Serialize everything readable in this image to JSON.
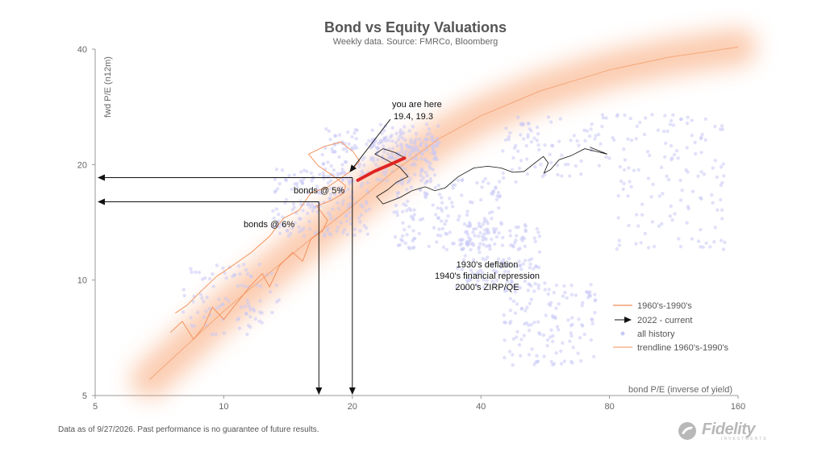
{
  "chart_data": {
    "type": "scatter",
    "title": "Bond vs Equity Valuations",
    "subtitle": "Weekly data.  Source: FMRCo, Bloomberg",
    "xlabel": "bond P/E (inverse of yield)",
    "ylabel": "fwd P/E (n12m)",
    "x_scale": "log",
    "y_scale": "log",
    "xlim": [
      5,
      160
    ],
    "ylim": [
      5,
      40
    ],
    "x_ticks": [
      5,
      10,
      20,
      40,
      80,
      160
    ],
    "y_ticks": [
      5,
      10,
      20,
      40
    ],
    "grid": false,
    "legend_position": "bottom-right",
    "legend": [
      {
        "label": "1960's-1990's",
        "color": "#f28c55",
        "kind": "line"
      },
      {
        "label": "2022 - current",
        "color": "#111111",
        "kind": "arrow"
      },
      {
        "label": "all history",
        "color": "#c9c9f5",
        "kind": "dot"
      },
      {
        "label": "trendline 1960's-1990's",
        "color": "#f4a87a",
        "kind": "line"
      }
    ],
    "series": [
      {
        "name": "1960's-1990's",
        "color": "#f28c55",
        "points": [
          [
            7.5,
            7.3
          ],
          [
            8.0,
            7.8
          ],
          [
            8.5,
            7.0
          ],
          [
            9.0,
            7.6
          ],
          [
            9.4,
            8.5
          ],
          [
            10.0,
            7.9
          ],
          [
            10.8,
            8.8
          ],
          [
            11.5,
            9.6
          ],
          [
            12.3,
            10.4
          ],
          [
            12.8,
            9.6
          ],
          [
            13.5,
            10.9
          ],
          [
            14.5,
            11.8
          ],
          [
            15.3,
            11.2
          ],
          [
            16.0,
            12.8
          ],
          [
            17.0,
            13.4
          ],
          [
            17.5,
            14.3
          ],
          [
            16.5,
            15.6
          ],
          [
            17.8,
            16.1
          ],
          [
            19.0,
            16.8
          ],
          [
            19.3,
            17.6
          ],
          [
            18.4,
            18.4
          ],
          [
            16.6,
            19.9
          ],
          [
            15.8,
            21.3
          ],
          [
            17.2,
            22.3
          ],
          [
            18.8,
            22.9
          ],
          [
            20.1,
            21.6
          ],
          [
            20.8,
            20.4
          ],
          [
            19.8,
            19.2
          ],
          [
            18.6,
            18.3
          ],
          [
            17.4,
            17.4
          ],
          [
            16.0,
            16.9
          ],
          [
            15.0,
            15.2
          ],
          [
            13.8,
            14.5
          ],
          [
            12.8,
            13.0
          ],
          [
            11.6,
            11.8
          ],
          [
            10.6,
            11.0
          ],
          [
            9.6,
            10.2
          ],
          [
            8.8,
            9.3
          ],
          [
            8.2,
            8.6
          ],
          [
            7.7,
            8.2
          ]
        ]
      },
      {
        "name": "2022 - current",
        "color": "#111111",
        "points": [
          [
            24.6,
            20.0
          ],
          [
            26.4,
            20.9
          ],
          [
            25.2,
            21.5
          ],
          [
            23.6,
            22.0
          ],
          [
            22.6,
            21.3
          ],
          [
            24.0,
            20.6
          ],
          [
            25.8,
            19.7
          ],
          [
            27.0,
            18.6
          ],
          [
            25.4,
            18.0
          ],
          [
            24.2,
            17.2
          ],
          [
            22.8,
            16.5
          ],
          [
            23.6,
            15.8
          ],
          [
            25.8,
            16.4
          ],
          [
            27.6,
            17.1
          ],
          [
            29.6,
            17.5
          ],
          [
            31.2,
            17.1
          ],
          [
            33.0,
            17.4
          ],
          [
            35.4,
            18.6
          ],
          [
            38.5,
            19.6
          ],
          [
            41.5,
            19.8
          ],
          [
            44.6,
            19.6
          ],
          [
            47.5,
            19.1
          ],
          [
            50.5,
            19.2
          ],
          [
            53.5,
            20.2
          ],
          [
            56.0,
            21.0
          ],
          [
            57.5,
            20.2
          ],
          [
            56.2,
            19.0
          ],
          [
            58.2,
            19.4
          ],
          [
            61.0,
            20.6
          ],
          [
            65.0,
            21.1
          ],
          [
            70.0,
            22.0
          ],
          [
            75.0,
            21.6
          ],
          [
            79.0,
            21.3
          ],
          [
            72.0,
            22.2
          ]
        ]
      },
      {
        "name": "2022 - current (recent, highlighted)",
        "color": "#e02424",
        "points": [
          [
            20.6,
            18.2
          ],
          [
            22.5,
            19.2
          ],
          [
            24.5,
            20.0
          ],
          [
            26.5,
            20.8
          ]
        ]
      },
      {
        "name": "trendline 1960's-1990's",
        "color": "#f4a87a",
        "points": [
          [
            6.7,
            5.5
          ],
          [
            8.0,
            6.6
          ],
          [
            10.0,
            8.3
          ],
          [
            13.0,
            10.6
          ],
          [
            16.0,
            12.8
          ],
          [
            20.0,
            15.6
          ],
          [
            25.0,
            19.2
          ],
          [
            32.0,
            23.4
          ],
          [
            40.0,
            26.8
          ],
          [
            55.0,
            31.1
          ],
          [
            80.0,
            35.3
          ],
          [
            110.0,
            38.1
          ],
          [
            160.0,
            40.5
          ]
        ]
      },
      {
        "name": "all history",
        "color": "#c9c9f5",
        "clusters": [
          {
            "x": [
              8,
              13.5
            ],
            "y": [
              7.2,
              11.0
            ],
            "n": 90
          },
          {
            "x": [
              13,
              22
            ],
            "y": [
              13.0,
              19.5
            ],
            "n": 170
          },
          {
            "x": [
              17,
              32
            ],
            "y": [
              18.0,
              25.5
            ],
            "n": 170
          },
          {
            "x": [
              22,
              32
            ],
            "y": [
              20.5,
              23.5
            ],
            "n": 90
          },
          {
            "x": [
              25,
              45
            ],
            "y": [
              12.0,
              18.5
            ],
            "n": 170
          },
          {
            "x": [
              35,
              55
            ],
            "y": [
              9.5,
              14.0
            ],
            "n": 130
          },
          {
            "x": [
              45,
              75
            ],
            "y": [
              6.0,
              10.0
            ],
            "n": 130
          },
          {
            "x": [
              45,
              150
            ],
            "y": [
              18.0,
              27.0
            ],
            "n": 160
          },
          {
            "x": [
              80,
              150
            ],
            "y": [
              12.0,
              18.0
            ],
            "n": 60
          }
        ]
      }
    ],
    "reference_lines": [
      {
        "label": "bonds @ 5%",
        "bond_pe": 20,
        "fwd_pe": 18.5
      },
      {
        "label": "bonds @ 6%",
        "bond_pe": 16.7,
        "fwd_pe": 16.0
      }
    ],
    "annotations": {
      "current_position_label": "you are here",
      "current_position_value": "19.4, 19.3",
      "regimes": [
        "1930's deflation",
        "1940's financial repression",
        "2000's ZIRP/QE"
      ]
    }
  },
  "footer": {
    "disclaimer": "Data as of 9/27/2026. Past performance is no guarantee of future results."
  },
  "brand": {
    "name": "Fidelity",
    "tagline": "INVESTMENTS"
  }
}
